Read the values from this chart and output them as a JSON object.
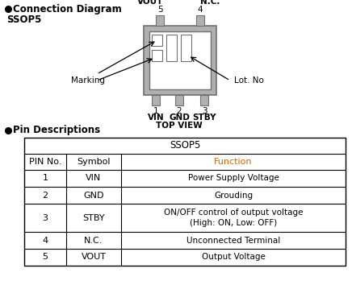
{
  "title_connection": "Connection Diagram",
  "title_ssop5": "SSOP5",
  "pin_section_title": "Pin Descriptions",
  "table_header_center": "SSOP5",
  "table_col_headers": [
    "PIN No.",
    "Symbol",
    "Function"
  ],
  "table_rows": [
    [
      "1",
      "VIN",
      "Power Supply Voltage"
    ],
    [
      "2",
      "GND",
      "Grouding"
    ],
    [
      "3",
      "STBY",
      "ON/OFF control of output voltage\n(High: ON, Low: OFF)"
    ],
    [
      "4",
      "N.C.",
      "Unconnected Terminal"
    ],
    [
      "5",
      "VOUT",
      "Output Voltage"
    ]
  ],
  "bg_color": "#ffffff",
  "text_color": "#000000",
  "header_function_color": "#cc6600",
  "table_border_color": "#000000",
  "marking_text": "Marking",
  "lot_no_text": "Lot. No",
  "pin_labels_bottom": [
    "1",
    "2",
    "3"
  ],
  "pin_names_bottom": [
    "VIN",
    "GND",
    "STBY"
  ],
  "pin_labels_top": [
    "5",
    "4"
  ],
  "pin_names_top": [
    "VOUT",
    "N.C."
  ],
  "top_view_text": "TOP VIEW",
  "ic_gray": "#b0b0b0",
  "ic_dark": "#707070"
}
